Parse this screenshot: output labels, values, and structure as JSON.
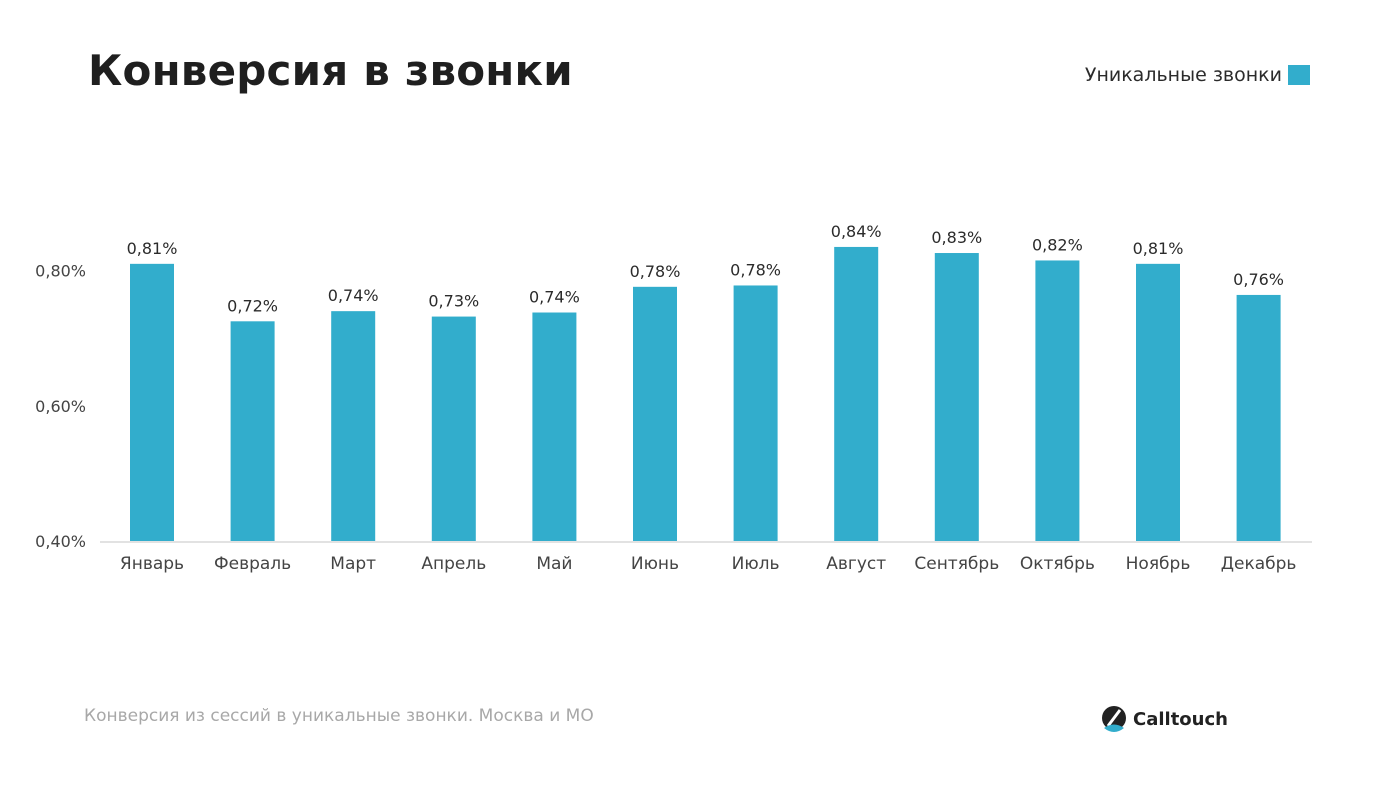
{
  "page": {
    "title": "Конверсия в звонки",
    "caption": "Конверсия из сессий в уникальные звонки. Москва и МО",
    "brand": "Calltouch"
  },
  "colors": {
    "bar": "#32adcc",
    "axis_text": "#444444",
    "baseline": "#d9d9d9",
    "logo_dark": "#222222",
    "logo_accent": "#32adcc"
  },
  "icons": {
    "brand_logo": "calltouch-logo-icon"
  },
  "chart_data": {
    "type": "bar",
    "title": "Конверсия в звонки",
    "legend_position": "top-right",
    "grid": false,
    "ylim": [
      0.4,
      0.9
    ],
    "yticks": [
      0.4,
      0.6,
      0.8
    ],
    "ytick_labels": [
      "0,40%",
      "0,60%",
      "0,80%"
    ],
    "categories": [
      "Январь",
      "Февраль",
      "Март",
      "Апрель",
      "Май",
      "Июнь",
      "Июль",
      "Август",
      "Сентябрь",
      "Октябрь",
      "Ноябрь",
      "Декабрь"
    ],
    "series": [
      {
        "name": "Уникальные звонки",
        "values": [
          0.81,
          0.725,
          0.74,
          0.732,
          0.738,
          0.776,
          0.778,
          0.835,
          0.826,
          0.815,
          0.81,
          0.764
        ],
        "labels": [
          "0,81%",
          "0,72%",
          "0,74%",
          "0,73%",
          "0,74%",
          "0,78%",
          "0,78%",
          "0,84%",
          "0,83%",
          "0,82%",
          "0,81%",
          "0,76%"
        ]
      }
    ]
  }
}
